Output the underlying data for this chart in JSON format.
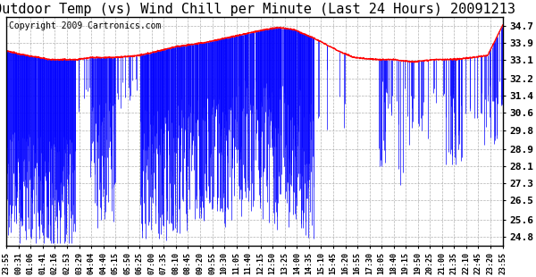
{
  "title": "Outdoor Temp (vs) Wind Chill per Minute (Last 24 Hours) 20091213",
  "copyright": "Copyright 2009 Cartronics.com",
  "yticks": [
    24.8,
    25.6,
    26.5,
    27.3,
    28.1,
    28.9,
    29.8,
    30.6,
    31.4,
    32.2,
    33.1,
    33.9,
    34.7
  ],
  "ylim": [
    24.4,
    35.1
  ],
  "xtick_labels": [
    "23:55",
    "00:31",
    "01:06",
    "01:41",
    "02:16",
    "02:53",
    "03:29",
    "04:04",
    "04:40",
    "05:15",
    "05:50",
    "06:25",
    "07:00",
    "07:35",
    "08:10",
    "08:45",
    "09:20",
    "09:55",
    "10:30",
    "11:05",
    "11:40",
    "12:15",
    "12:50",
    "13:25",
    "14:00",
    "14:35",
    "15:10",
    "15:45",
    "16:20",
    "16:55",
    "17:30",
    "18:05",
    "18:40",
    "19:15",
    "19:50",
    "20:25",
    "21:00",
    "21:35",
    "22:10",
    "22:45",
    "23:20",
    "23:55"
  ],
  "wind_chill_color": "#0000ff",
  "outdoor_temp_color": "#ff0000",
  "background_color": "#ffffff",
  "grid_color": "#aaaaaa",
  "title_fontsize": 11,
  "copyright_fontsize": 7,
  "n_points": 1440,
  "spike_zones": [
    [
      0,
      0.14,
      0.95,
      3.5,
      9.0
    ],
    [
      0.14,
      0.17,
      0.2,
      1.0,
      3.0
    ],
    [
      0.17,
      0.22,
      0.8,
      2.0,
      8.0
    ],
    [
      0.22,
      0.27,
      0.2,
      1.0,
      2.5
    ],
    [
      0.27,
      0.46,
      0.88,
      2.5,
      9.0
    ],
    [
      0.46,
      0.52,
      0.85,
      2.0,
      9.0
    ],
    [
      0.52,
      0.62,
      0.92,
      2.5,
      9.5
    ],
    [
      0.62,
      0.7,
      0.05,
      1.0,
      4.0
    ],
    [
      0.7,
      0.75,
      0.0,
      0.0,
      0.0
    ],
    [
      0.75,
      0.8,
      0.35,
      1.0,
      6.0
    ],
    [
      0.8,
      0.85,
      0.2,
      1.0,
      4.0
    ],
    [
      0.85,
      0.88,
      0.05,
      1.0,
      3.0
    ],
    [
      0.88,
      0.92,
      0.4,
      1.5,
      5.0
    ],
    [
      0.92,
      0.96,
      0.1,
      1.0,
      3.0
    ],
    [
      0.96,
      1.0,
      0.5,
      1.5,
      5.0
    ]
  ]
}
